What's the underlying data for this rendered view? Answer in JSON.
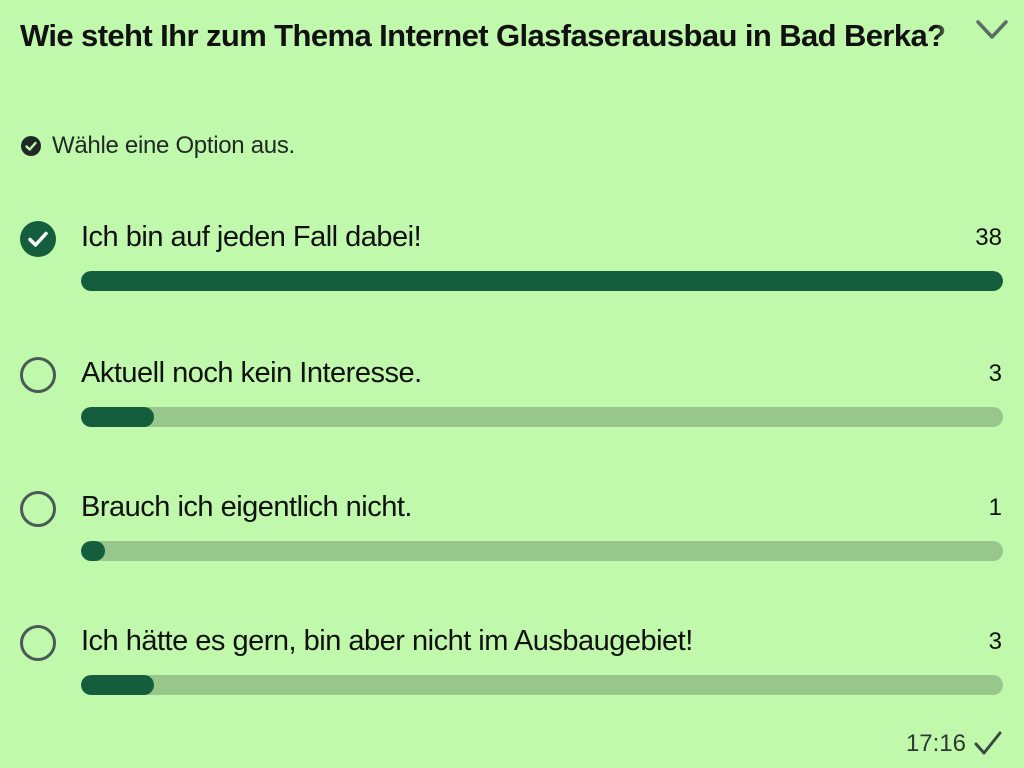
{
  "poll": {
    "question": "Wie steht Ihr zum Thema Internet Glasfaserausbau in Bad Berka?",
    "hint": "Wähle eine Option aus.",
    "total_max": 38,
    "options": [
      {
        "label": "Ich bin auf jeden Fall dabei!",
        "count": "38",
        "value": 38,
        "selected": true
      },
      {
        "label": "Aktuell noch kein Interesse.",
        "count": "3",
        "value": 3,
        "selected": false
      },
      {
        "label": "Brauch ich eigentlich nicht.",
        "count": "1",
        "value": 1,
        "selected": false
      },
      {
        "label": "Ich hätte es gern, bin aber nicht im Ausbaugebiet!",
        "count": "3",
        "value": 3,
        "selected": false
      }
    ]
  },
  "message": {
    "time": "17:16",
    "status_icon": "single-check-icon"
  },
  "colors": {
    "background": "#c0f8ac",
    "accent": "#155e3d",
    "track": "#98c78b"
  }
}
